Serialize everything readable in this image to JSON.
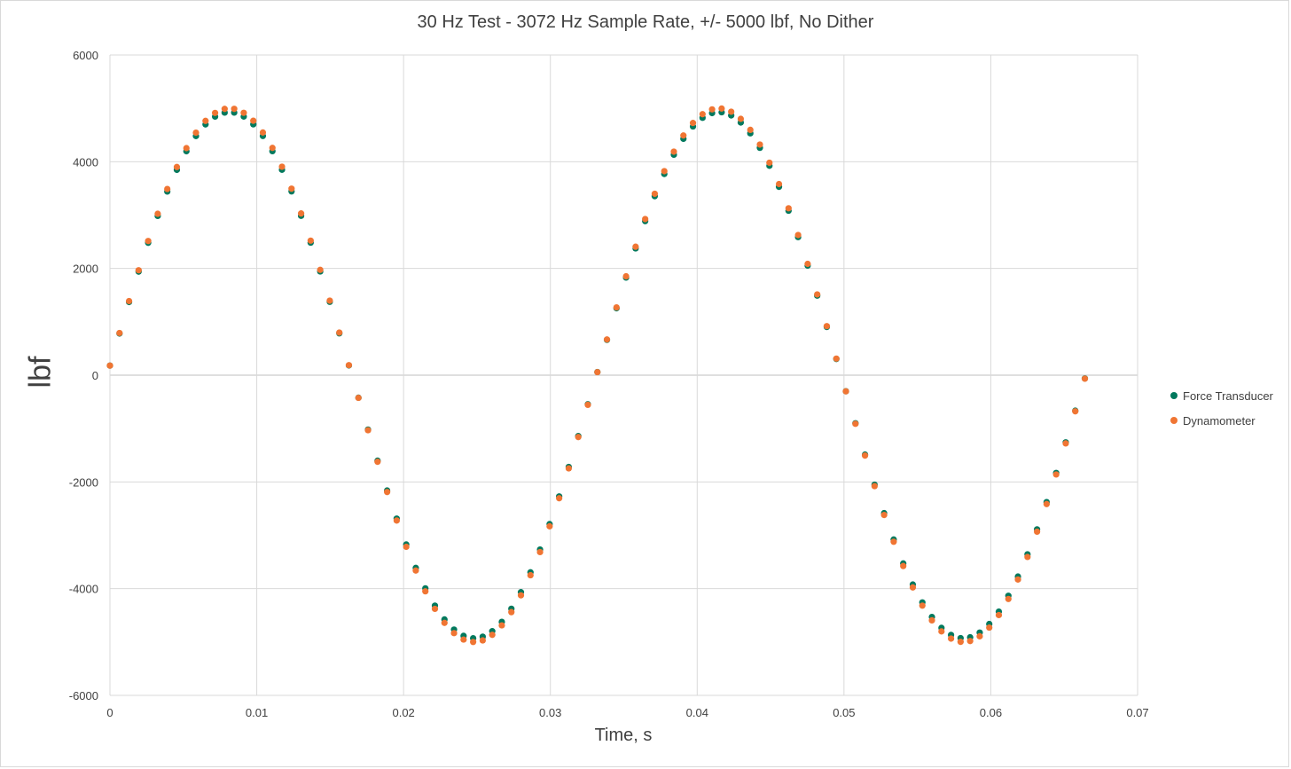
{
  "chart_data": {
    "type": "scatter",
    "title": "30 Hz Test - 3072 Hz Sample Rate, +/- 5000 lbf, No Dither",
    "xlabel": "Time, s",
    "ylabel": "lbf",
    "xlim": [
      0,
      0.07
    ],
    "ylim": [
      -6000,
      6000
    ],
    "x_ticks": [
      0,
      0.01,
      0.02,
      0.03,
      0.04,
      0.05,
      0.06,
      0.07
    ],
    "x_tick_labels": [
      "0",
      "0.01",
      "0.02",
      "0.03",
      "0.04",
      "0.05",
      "0.06",
      "0.07"
    ],
    "y_ticks": [
      -6000,
      -4000,
      -2000,
      0,
      2000,
      4000,
      6000
    ],
    "y_tick_labels": [
      "-6000",
      "-4000",
      "-2000",
      "0",
      "2000",
      "4000",
      "6000"
    ],
    "grid": true,
    "legend_position": "right",
    "sample_rate_hz": 3072,
    "frequency_hz": 30,
    "series": [
      {
        "name": "Force Transducer",
        "color": "#00795d",
        "amplitude": 4930,
        "x_start": 0,
        "x_end": 0.0667,
        "y_start": 180
      },
      {
        "name": "Dynamometer",
        "color": "#f07533",
        "amplitude": 5000,
        "x_start": 0,
        "x_end": 0.0667,
        "y_start": 180
      }
    ]
  }
}
